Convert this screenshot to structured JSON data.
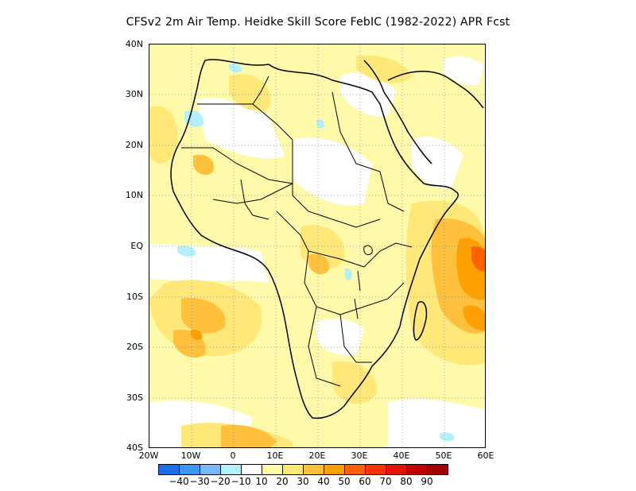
{
  "title": "CFSv2  2m Air Temp. Heidke Skill Score FebIC (1982-2022) APR Fcst",
  "y_axis_labels": [
    "40N",
    "30N",
    "20N",
    "10N",
    "EQ",
    "10S",
    "20S",
    "30S",
    "40S"
  ],
  "x_axis_labels": [
    "20W",
    "10W",
    "0",
    "10E",
    "20E",
    "30E",
    "40E",
    "50E",
    "60E"
  ],
  "colorbar": {
    "colors": [
      "#1e6eeb",
      "#3c96f5",
      "#78b9fa",
      "#b4f0fa",
      "#ffffff",
      "#fffaaa",
      "#ffe878",
      "#ffc03c",
      "#ffa000",
      "#ff6000",
      "#ff3200",
      "#e11400",
      "#c00000",
      "#a50000"
    ],
    "labels": [
      "-40",
      "-30",
      "-20",
      "-10",
      "10",
      "20",
      "30",
      "40",
      "50",
      "60",
      "70",
      "80",
      "90"
    ]
  },
  "map_colors": {
    "land_outline": "#000000",
    "grid": "#888888",
    "light_yellow": "#fffaaa",
    "yellow": "#ffe878",
    "orange_light": "#ffc03c",
    "orange": "#ffa000",
    "deep_orange": "#ff6000",
    "light_blue": "#b4f0fa"
  }
}
